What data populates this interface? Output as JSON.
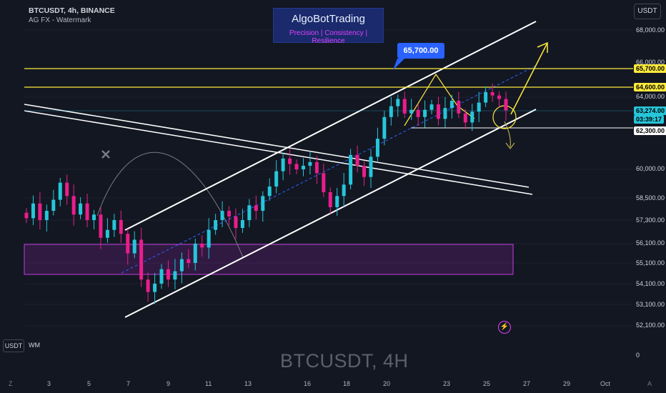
{
  "header": {
    "symbol_line": "BTCUSDT, 4h, BINANCE",
    "sub_line": "AG FX - Watermark"
  },
  "brand": {
    "title": "AlgoBotTrading",
    "slogan": "Precision  | Consistency | Resilience"
  },
  "currency_button": "USDT",
  "callout_label": "65,700.00",
  "price_axis": {
    "labels": [
      "68,000.00",
      "66,000.00",
      "64,000.00",
      "60,000.00",
      "58,500.00",
      "57,300.00",
      "56,100.00",
      "55,100.00",
      "54,100.00",
      "53,100.00",
      "52,100.00"
    ],
    "tags": [
      {
        "text": "65,700.00",
        "bg": "#ffeb3b",
        "fg": "#000000"
      },
      {
        "text": "64,600.00",
        "bg": "#ffeb3b",
        "fg": "#000000"
      },
      {
        "text": "63,274.00",
        "bg": "#26c6da",
        "fg": "#000000"
      },
      {
        "text": "03:39:17",
        "bg": "#26c6da",
        "fg": "#000000"
      },
      {
        "text": "62,300.00",
        "bg": "#ffffff",
        "fg": "#000000"
      }
    ]
  },
  "time_axis": {
    "labels": [
      "3",
      "5",
      "7",
      "9",
      "11",
      "13",
      "16",
      "18",
      "20",
      "23",
      "25",
      "27",
      "29",
      "Oct"
    ],
    "left_edge": "Z",
    "right_edge": "A"
  },
  "bottom": {
    "title": "BTCUSDT, 4H",
    "usdt": "USDT",
    "wm": "WM",
    "zero": "0"
  },
  "colors": {
    "bg": "#131722",
    "up": "#26c6da",
    "down": "#e91e8c",
    "yellow": "#ffeb3b",
    "zone": "#9c27b0"
  },
  "chart_data": {
    "type": "candlestick",
    "symbol": "BTCUSDT",
    "interval": "4h",
    "exchange": "BINANCE",
    "levels": [
      65700,
      64600,
      62300
    ],
    "current_price": 63274,
    "countdown": "03:39:17",
    "candles_close_approx": [
      57400,
      58200,
      57300,
      57800,
      58400,
      59300,
      58600,
      57600,
      58200,
      57300,
      57600,
      56400,
      56800,
      57300,
      56600,
      55600,
      56300,
      54300,
      53700,
      54100,
      54800,
      54300,
      54700,
      55300,
      55100,
      56100,
      55900,
      56800,
      57300,
      57800,
      57500,
      56900,
      57300,
      58100,
      57800,
      58600,
      59100,
      59900,
      60600,
      60300,
      60000,
      60200,
      60400,
      59800,
      58800,
      58000,
      58600,
      59200,
      60800,
      60200,
      59600,
      60700,
      61700,
      62900,
      63500,
      63900,
      63100,
      63300,
      62900,
      63300,
      63600,
      62800,
      63400,
      63800,
      63100,
      62600,
      63200,
      63700,
      64300,
      64100,
      63900,
      63274
    ]
  }
}
